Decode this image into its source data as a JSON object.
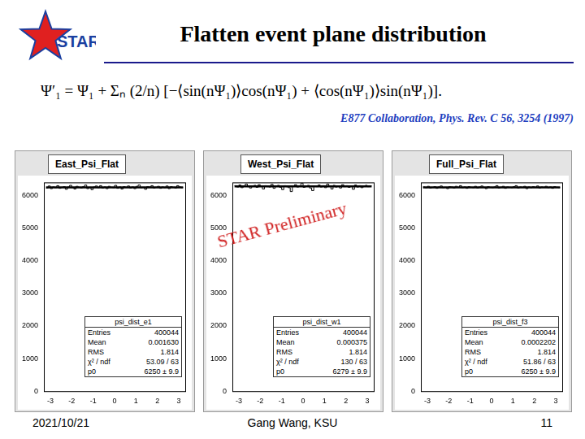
{
  "slide": {
    "title": "Flatten event plane distribution",
    "logo_text": "STAR",
    "formula": "Ψ′₁ = Ψ₁ + Σₙ (2/n) [−⟨sin(nΨ₁)⟩cos(nΨ₁) + ⟨cos(nΨ₁)⟩sin(nΨ₁)].",
    "citation": "E877 Collaboration, Phys. Rev. C 56, 3254 (1997)",
    "watermark": "STAR Preliminary",
    "footer": {
      "date": "2021/10/21",
      "author": "Gang Wang, KSU",
      "page": "11"
    }
  },
  "chart_data": [
    {
      "type": "histogram",
      "title": "East_Psi_Flat",
      "color": "#000000",
      "grid": false,
      "bins": [
        -3.2,
        -3.1,
        -3.0,
        -2.9,
        -2.8,
        -2.7,
        -2.6,
        -2.5,
        -2.4,
        -2.3,
        -2.2,
        -2.1,
        -2.0,
        -1.9,
        -1.8,
        -1.7,
        -1.6,
        -1.5,
        -1.4,
        -1.3,
        -1.2,
        -1.1,
        -1.0,
        -0.9,
        -0.8,
        -0.7,
        -0.6,
        -0.5,
        -0.4,
        -0.3,
        -0.2,
        -0.1,
        0,
        0.1,
        0.2,
        0.3,
        0.4,
        0.5,
        0.6,
        0.7,
        0.8,
        0.9,
        1.0,
        1.1,
        1.2,
        1.3,
        1.4,
        1.5,
        1.6,
        1.7,
        1.8,
        1.9,
        2.0,
        2.1,
        2.2,
        2.3,
        2.4,
        2.5,
        2.6,
        2.7,
        2.8,
        2.9,
        3.0,
        3.1,
        3.2
      ],
      "values": [
        6230,
        6290,
        6210,
        6260,
        6240,
        6300,
        6220,
        6250,
        6270,
        6190,
        6260,
        6310,
        6240,
        6200,
        6280,
        6250,
        6230,
        6270,
        6320,
        6210,
        6250,
        6180,
        6260,
        6290,
        6240,
        6300,
        6230,
        6260,
        6210,
        6280,
        6250,
        6240,
        6310,
        6220,
        6260,
        6200,
        6270,
        6250,
        6290,
        6230,
        6260,
        6210,
        6280,
        6320,
        6240,
        6250,
        6190,
        6270,
        6260,
        6300,
        6230,
        6250,
        6280,
        6220,
        6260,
        6240,
        6290,
        6210,
        6270,
        6250,
        6230,
        6300,
        6260,
        6240
      ],
      "fit_p0": 6250,
      "xlim": [
        -3.3,
        3.3
      ],
      "xticks": [
        -3,
        -2,
        -1,
        0,
        1,
        2,
        3
      ],
      "ylim": [
        0,
        6400
      ],
      "yticks": [
        0,
        1000,
        2000,
        3000,
        4000,
        5000,
        6000
      ],
      "stats": {
        "name": "psi_dist_e1",
        "rows": [
          [
            "Entries",
            "400044"
          ],
          [
            "Mean",
            "0.001630"
          ],
          [
            "RMS",
            "1.814"
          ],
          [
            "χ² / ndf",
            "53.09 / 63"
          ],
          [
            "p0",
            "6250 ± 9.9"
          ]
        ]
      }
    },
    {
      "type": "histogram",
      "title": "West_Psi_Flat",
      "color": "#000000",
      "grid": false,
      "bins": [
        -3.2,
        -3.1,
        -3.0,
        -2.9,
        -2.8,
        -2.7,
        -2.6,
        -2.5,
        -2.4,
        -2.3,
        -2.2,
        -2.1,
        -2.0,
        -1.9,
        -1.8,
        -1.7,
        -1.6,
        -1.5,
        -1.4,
        -1.3,
        -1.2,
        -1.1,
        -1.0,
        -0.9,
        -0.8,
        -0.7,
        -0.6,
        -0.5,
        -0.4,
        -0.3,
        -0.2,
        -0.1,
        0,
        0.1,
        0.2,
        0.3,
        0.4,
        0.5,
        0.6,
        0.7,
        0.8,
        0.9,
        1.0,
        1.1,
        1.2,
        1.3,
        1.4,
        1.5,
        1.6,
        1.7,
        1.8,
        1.9,
        2.0,
        2.1,
        2.2,
        2.3,
        2.4,
        2.5,
        2.6,
        2.7,
        2.8,
        2.9,
        3.0,
        3.1,
        3.2
      ],
      "values": [
        6300,
        6260,
        6320,
        6240,
        6280,
        6350,
        6270,
        6230,
        6290,
        6310,
        6250,
        6330,
        6280,
        6200,
        6300,
        6270,
        6260,
        6340,
        6220,
        6290,
        6310,
        6250,
        6180,
        6300,
        6270,
        6240,
        6120,
        6290,
        6330,
        6260,
        6300,
        6380,
        6250,
        6280,
        6310,
        6230,
        6150,
        6290,
        6270,
        6320,
        6260,
        6300,
        6240,
        6350,
        6280,
        6200,
        6310,
        6260,
        6290,
        6230,
        6330,
        6270,
        6300,
        6250,
        6280,
        6190,
        6320,
        6260,
        6300,
        6240,
        6280,
        6310,
        6270,
        6290
      ],
      "fit_p0": 6279,
      "xlim": [
        -3.3,
        3.3
      ],
      "xticks": [
        -3,
        -2,
        -1,
        0,
        1,
        2,
        3
      ],
      "ylim": [
        0,
        6400
      ],
      "yticks": [
        0,
        1000,
        2000,
        3000,
        4000,
        5000,
        6000
      ],
      "stats": {
        "name": "psi_dist_w1",
        "rows": [
          [
            "Entries",
            "400044"
          ],
          [
            "Mean",
            "0.000375"
          ],
          [
            "RMS",
            "1.814"
          ],
          [
            "χ² / ndf",
            "130 / 63"
          ],
          [
            "p0",
            "6279 ± 9.9"
          ]
        ]
      }
    },
    {
      "type": "histogram",
      "title": "Full_Psi_Flat",
      "color": "#000000",
      "grid": false,
      "bins": [
        -3.2,
        -3.1,
        -3.0,
        -2.9,
        -2.8,
        -2.7,
        -2.6,
        -2.5,
        -2.4,
        -2.3,
        -2.2,
        -2.1,
        -2.0,
        -1.9,
        -1.8,
        -1.7,
        -1.6,
        -1.5,
        -1.4,
        -1.3,
        -1.2,
        -1.1,
        -1.0,
        -0.9,
        -0.8,
        -0.7,
        -0.6,
        -0.5,
        -0.4,
        -0.3,
        -0.2,
        -0.1,
        0,
        0.1,
        0.2,
        0.3,
        0.4,
        0.5,
        0.6,
        0.7,
        0.8,
        0.9,
        1.0,
        1.1,
        1.2,
        1.3,
        1.4,
        1.5,
        1.6,
        1.7,
        1.8,
        1.9,
        2.0,
        2.1,
        2.2,
        2.3,
        2.4,
        2.5,
        2.6,
        2.7,
        2.8,
        2.9,
        3.0,
        3.1,
        3.2
      ],
      "values": [
        6260,
        6240,
        6280,
        6230,
        6250,
        6270,
        6220,
        6260,
        6290,
        6240,
        6250,
        6210,
        6270,
        6260,
        6230,
        6280,
        6250,
        6300,
        6240,
        6260,
        6220,
        6270,
        6250,
        6240,
        6280,
        6230,
        6260,
        6290,
        6250,
        6210,
        6270,
        6250,
        6240,
        6260,
        6300,
        6230,
        6250,
        6280,
        6220,
        6260,
        6250,
        6240,
        6270,
        6300,
        6230,
        6260,
        6250,
        6280,
        6210,
        6260,
        6240,
        6270,
        6250,
        6290,
        6230,
        6260,
        6250,
        6280,
        6240,
        6260,
        6220,
        6270,
        6250,
        6240
      ],
      "fit_p0": 6250,
      "xlim": [
        -3.3,
        3.3
      ],
      "xticks": [
        -3,
        -2,
        -1,
        0,
        1,
        2,
        3
      ],
      "ylim": [
        0,
        6400
      ],
      "yticks": [
        0,
        1000,
        2000,
        3000,
        4000,
        5000,
        6000
      ],
      "stats": {
        "name": "psi_dist_f3",
        "rows": [
          [
            "Entries",
            "400044"
          ],
          [
            "Mean",
            "0.0002202"
          ],
          [
            "RMS",
            "1.814"
          ],
          [
            "χ² / ndf",
            "51.86 / 63"
          ],
          [
            "p0",
            "6250 ± 9.9"
          ]
        ]
      }
    }
  ]
}
